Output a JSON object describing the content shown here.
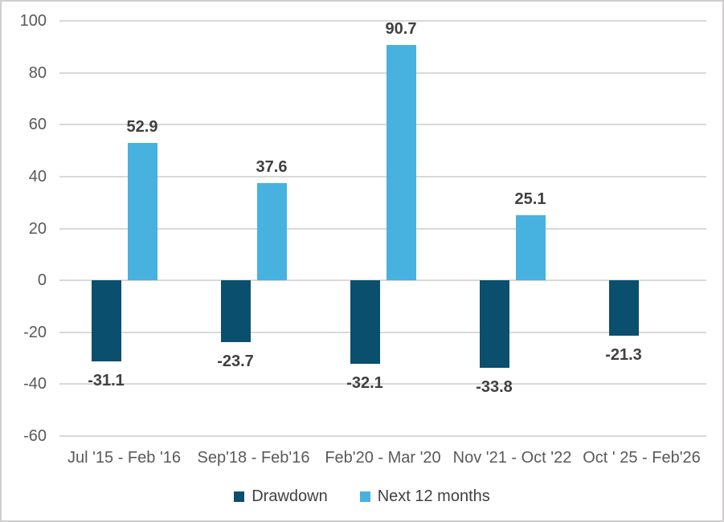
{
  "chart_data": {
    "type": "bar",
    "title": "",
    "xlabel": "",
    "ylabel": "",
    "categories": [
      "Jul '15 - Feb '16",
      "Sep'18 - Feb'16",
      "Feb'20 - Mar '20",
      "Nov '21 - Oct '22",
      "Oct ' 25 - Feb'26"
    ],
    "series": [
      {
        "name": "Drawdown",
        "color": "#0a4f6e",
        "values": [
          -31.1,
          -23.7,
          -32.1,
          -33.8,
          -21.3
        ]
      },
      {
        "name": "Next 12 months",
        "color": "#47b2e0",
        "values": [
          52.9,
          37.6,
          90.7,
          25.1,
          null
        ]
      }
    ],
    "ylim": [
      -60,
      100
    ],
    "yticks": [
      100,
      80,
      60,
      40,
      20,
      0,
      -20,
      -40,
      -60
    ],
    "grid": true,
    "data_labels": true,
    "legend_position": "bottom"
  },
  "colors": {
    "drawdown": "#0a4f6e",
    "next_12_months": "#47b2e0",
    "gridline": "#d9d9d9",
    "frame_border": "#cfcdcd",
    "axis_text": "#595959",
    "data_label_text": "#404040"
  }
}
